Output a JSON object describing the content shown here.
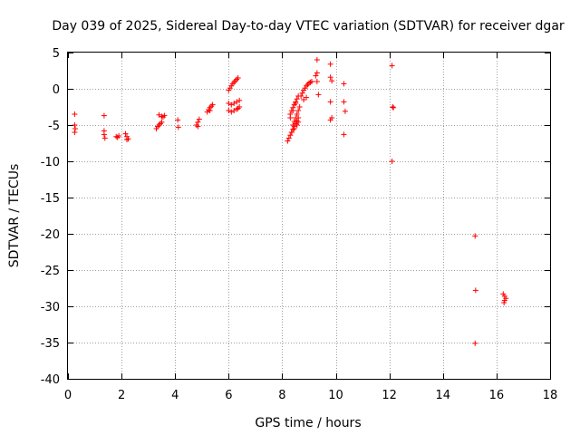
{
  "chart_data": {
    "type": "scatter",
    "title": "Day 039 of 2025, Sidereal Day-to-day VTEC variation (SDTVAR) for receiver dgar",
    "xlabel": "GPS time / hours",
    "ylabel": "SDTVAR / TECUs",
    "xlim": [
      0,
      18
    ],
    "ylim": [
      -40,
      5
    ],
    "xticks": [
      "0",
      "2",
      "4",
      "6",
      "8",
      "10",
      "12",
      "14",
      "16",
      "18"
    ],
    "yticks": [
      "5",
      "0",
      "-5",
      "-10",
      "-15",
      "-20",
      "-25",
      "-30",
      "-35",
      "-40"
    ],
    "grid": true,
    "marker": "+",
    "color": "#ff0000",
    "series": [
      {
        "name": "SDTVAR",
        "x": [
          0.25,
          0.25,
          0.25,
          0.27,
          1.35,
          1.35,
          1.35,
          1.38,
          1.8,
          1.85,
          1.9,
          2.15,
          2.2,
          2.25,
          2.2,
          3.3,
          3.35,
          3.4,
          3.45,
          3.5,
          3.4,
          3.5,
          3.55,
          3.6,
          4.1,
          4.12,
          4.8,
          4.85,
          4.9,
          4.85,
          5.2,
          5.25,
          5.3,
          5.35,
          5.4,
          5.3,
          6.0,
          6.05,
          6.1,
          6.15,
          6.2,
          6.25,
          6.3,
          6.35,
          6.0,
          6.1,
          6.2,
          6.3,
          6.4,
          6.0,
          6.1,
          6.2,
          6.3,
          6.35,
          6.4,
          8.2,
          8.25,
          8.3,
          8.35,
          8.4,
          8.45,
          8.5,
          8.55,
          8.6,
          8.3,
          8.35,
          8.4,
          8.45,
          8.5,
          8.55,
          8.6,
          8.4,
          8.45,
          8.5,
          8.55,
          8.6,
          8.65,
          8.3,
          8.4,
          8.5,
          8.35,
          8.45,
          8.55,
          8.6,
          8.7,
          8.75,
          8.8,
          8.85,
          8.9,
          8.95,
          9.0,
          9.05,
          9.1,
          8.8,
          8.9,
          9.25,
          9.3,
          9.3,
          9.35,
          9.3,
          9.8,
          9.8,
          9.85,
          9.8,
          9.85,
          9.8,
          10.3,
          10.3,
          10.35,
          10.3,
          12.1,
          12.12,
          12.15,
          12.1,
          15.2,
          15.22,
          15.2,
          16.25,
          16.3,
          16.35,
          16.3,
          16.28
        ],
        "y": [
          -3.5,
          -5.0,
          -6.0,
          -5.5,
          -3.7,
          -5.8,
          -6.3,
          -6.8,
          -6.6,
          -6.7,
          -6.5,
          -6.2,
          -6.6,
          -6.9,
          -7.0,
          -5.5,
          -5.2,
          -5.0,
          -4.8,
          -4.6,
          -3.6,
          -3.8,
          -3.9,
          -3.7,
          -4.3,
          -5.3,
          -5.0,
          -4.6,
          -4.2,
          -5.2,
          -3.2,
          -2.9,
          -2.6,
          -2.4,
          -2.2,
          -3.0,
          -0.2,
          0.1,
          0.4,
          0.7,
          0.9,
          1.1,
          1.3,
          1.5,
          -2.0,
          -2.2,
          -2.0,
          -1.8,
          -1.6,
          -3.0,
          -3.2,
          -3.0,
          -2.8,
          -2.7,
          -2.5,
          -7.2,
          -6.8,
          -6.4,
          -6.0,
          -5.6,
          -5.2,
          -4.8,
          -4.4,
          -4.0,
          -3.5,
          -3.0,
          -2.6,
          -2.2,
          -1.8,
          -1.4,
          -1.0,
          -5.0,
          -4.5,
          -4.0,
          -3.5,
          -3.0,
          -2.5,
          -4.0,
          -3.0,
          -2.0,
          -6.0,
          -5.5,
          -5.0,
          -4.6,
          -1.0,
          -0.6,
          -0.2,
          0.1,
          0.4,
          0.6,
          0.8,
          0.9,
          1.0,
          -1.5,
          -1.2,
          1.8,
          2.2,
          4.0,
          -0.8,
          1.0,
          3.4,
          1.6,
          1.1,
          -1.8,
          -4.0,
          -4.3,
          0.7,
          -1.8,
          -3.1,
          -6.3,
          3.2,
          -2.5,
          -2.6,
          -10.0,
          -20.3,
          -27.8,
          -35.1,
          -28.3,
          -28.6,
          -28.9,
          -29.2,
          -29.5
        ]
      }
    ]
  }
}
